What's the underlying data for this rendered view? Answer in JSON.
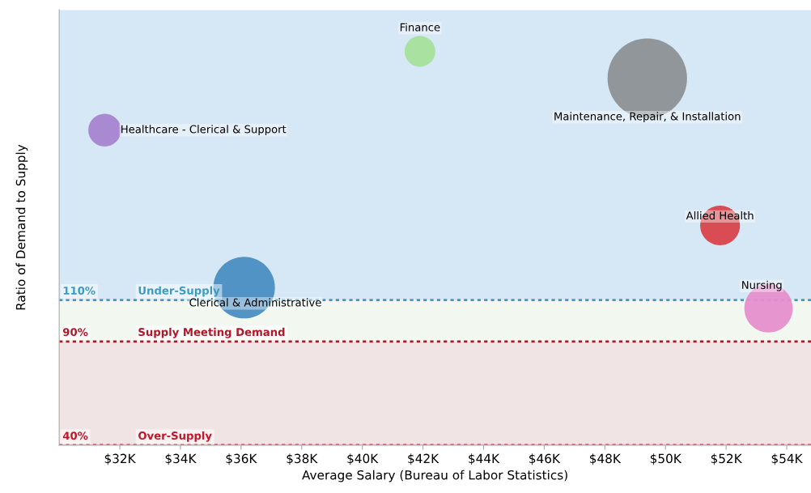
{
  "chart_data": {
    "type": "bubble",
    "xlabel": "Average Salary (Bureau of Labor Statistics)",
    "ylabel": "Ratio of Demand to Supply",
    "xlim": [
      30,
      54.8
    ],
    "ylim": [
      40,
      250
    ],
    "xticks": [
      {
        "value": 32,
        "label": "$32K"
      },
      {
        "value": 34,
        "label": "$34K"
      },
      {
        "value": 36,
        "label": "$36K"
      },
      {
        "value": 38,
        "label": "$38K"
      },
      {
        "value": 40,
        "label": "$40K"
      },
      {
        "value": 42,
        "label": "$42K"
      },
      {
        "value": 44,
        "label": "$44K"
      },
      {
        "value": 46,
        "label": "$46K"
      },
      {
        "value": 48,
        "label": "$48K"
      },
      {
        "value": 50,
        "label": "$50K"
      },
      {
        "value": 52,
        "label": "$52K"
      },
      {
        "value": 54,
        "label": "$54K"
      }
    ],
    "tick_labels": "x",
    "grid": false,
    "legend": false,
    "series": [
      {
        "name": "Finance",
        "color": "#a6e09b",
        "x": [
          41.9
        ],
        "values": [
          230
        ],
        "sizes": [
          0.15
        ]
      },
      {
        "name": "Maintenance, Repair, & Installation",
        "color": "#8c9193",
        "x": [
          49.4
        ],
        "values": [
          217
        ],
        "sizes": [
          1
        ]
      },
      {
        "name": "Healthcare - Clerical & Support",
        "color": "#a584d0",
        "x": [
          31.5
        ],
        "values": [
          192
        ],
        "sizes": [
          0.17
        ]
      },
      {
        "name": "Allied Health",
        "color": "#d9434a",
        "x": [
          51.8
        ],
        "values": [
          146
        ],
        "sizes": [
          0.25
        ]
      },
      {
        "name": "Clerical & Administrative",
        "color": "#4a8ec2",
        "x": [
          36.1
        ],
        "values": [
          116
        ],
        "sizes": [
          0.6
        ]
      },
      {
        "name": "Nursing",
        "color": "#e68fcc",
        "x": [
          53.4
        ],
        "values": [
          106
        ],
        "sizes": [
          0.37
        ]
      }
    ],
    "bands": [
      {
        "axis": "y",
        "from": 110,
        "to": 250,
        "label": "Under-Supply",
        "color": "#d6e7f5"
      },
      {
        "axis": "y",
        "from": 90,
        "to": 110,
        "label": "Supply Meeting Demand",
        "color": "#f2f8f0"
      },
      {
        "axis": "y",
        "from": 40,
        "to": 90,
        "label": "Over-Supply",
        "color": "#f1e4e4"
      }
    ],
    "ref_lines": [
      {
        "axis": "y",
        "value": 110,
        "label": "110%",
        "color": "#3f9ac0",
        "line_style": "dotted"
      },
      {
        "axis": "y",
        "value": 90,
        "label": "90%",
        "color": "#b0172a",
        "line_style": "dotted"
      },
      {
        "axis": "y",
        "value": 40,
        "label": "40%",
        "color": "#c0172a",
        "line_style": "dotted"
      }
    ]
  }
}
